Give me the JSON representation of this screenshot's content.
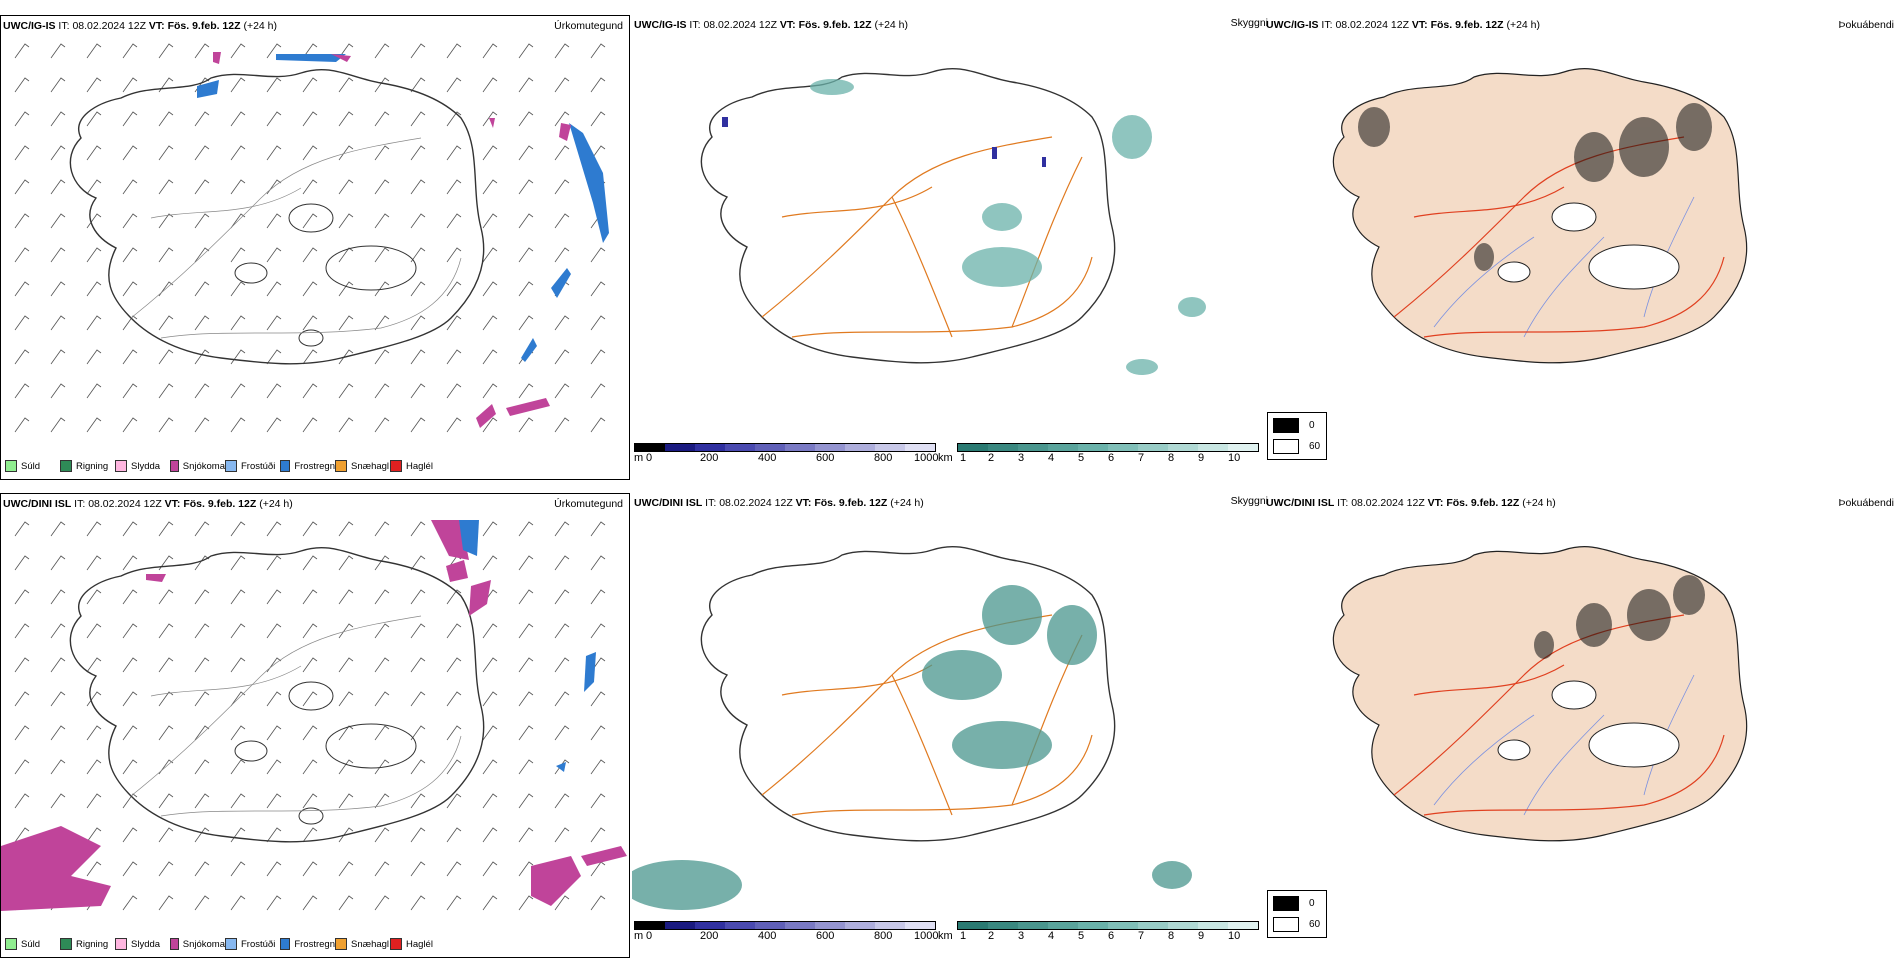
{
  "rows": [
    {
      "id": "ig",
      "panels": [
        {
          "model": "UWC/IG-IS",
          "it_label": "IT:",
          "it_value": "08.02.2024 12Z",
          "vt_label": "VT:",
          "vt_value": "Fös. 9.feb. 12Z",
          "lead": "(+24 h)",
          "field": "Úrkomutegund"
        },
        {
          "model": "UWC/IG-IS",
          "it_label": "IT:",
          "it_value": "08.02.2024 12Z",
          "vt_label": "VT:",
          "vt_value": "Fös. 9.feb. 12Z",
          "lead": "(+24 h)",
          "field": "Skyggni"
        },
        {
          "model": "UWC/IG-IS",
          "it_label": "IT:",
          "it_value": "08.02.2024 12Z",
          "vt_label": "VT:",
          "vt_value": "Fös. 9.feb. 12Z",
          "lead": "(+24 h)",
          "field": "Þokuábendi"
        }
      ]
    },
    {
      "id": "dini",
      "panels": [
        {
          "model": "UWC/DINI ISL",
          "it_label": "IT:",
          "it_value": "08.02.2024 12Z",
          "vt_label": "VT:",
          "vt_value": "Fös. 9.feb. 12Z",
          "lead": "(+24 h)",
          "field": "Úrkomutegund"
        },
        {
          "model": "UWC/DINI ISL",
          "it_label": "IT:",
          "it_value": "08.02.2024 12Z",
          "vt_label": "VT:",
          "vt_value": "Fös. 9.feb. 12Z",
          "lead": "(+24 h)",
          "field": "Skyggni"
        },
        {
          "model": "UWC/DINI ISL",
          "it_label": "IT:",
          "it_value": "08.02.2024 12Z",
          "vt_label": "VT:",
          "vt_value": "Fös. 9.feb. 12Z",
          "lead": "(+24 h)",
          "field": "Þokuábendi"
        }
      ]
    }
  ],
  "precip_legend": [
    {
      "label": "Súld",
      "color": "#90ee90"
    },
    {
      "label": "Rigning",
      "color": "#2e8b57"
    },
    {
      "label": "Slydda",
      "color": "#ffb6e0"
    },
    {
      "label": "Snjókoma",
      "color": "#c0449a"
    },
    {
      "label": "Frostúði",
      "color": "#87b8f0"
    },
    {
      "label": "Frostregn",
      "color": "#2e7bd0"
    },
    {
      "label": "Snæhagl",
      "color": "#f0a030"
    },
    {
      "label": "Haglél",
      "color": "#e02020"
    }
  ],
  "vis_m_scale": {
    "unit": "m",
    "ticks": [
      "0",
      "200",
      "400",
      "600",
      "800",
      "1000"
    ],
    "colors": [
      "#000000",
      "#1a1a80",
      "#3030a0",
      "#4a4ab0",
      "#6060b8",
      "#7a7ac4",
      "#9494d0",
      "#aeaedc",
      "#c8c8e8",
      "#e0e0f4"
    ]
  },
  "vis_km_scale": {
    "unit": "km",
    "ticks": [
      "1",
      "2",
      "3",
      "4",
      "5",
      "6",
      "7",
      "8",
      "9",
      "10"
    ],
    "colors": [
      "#2a7a72",
      "#3a8880",
      "#4a968e",
      "#5aa49c",
      "#6ab2aa",
      "#80bfb8",
      "#98ccc6",
      "#b0d9d4",
      "#c8e6e2",
      "#e0f2f0"
    ]
  },
  "fog_key": {
    "black_label": "0",
    "white_label": "60"
  },
  "colors": {
    "coast": "#222222",
    "roads": "#e07a20",
    "rivers": "#7a90e0",
    "fog_land": "#f4dcc8",
    "fog_roads": "#e04020"
  }
}
